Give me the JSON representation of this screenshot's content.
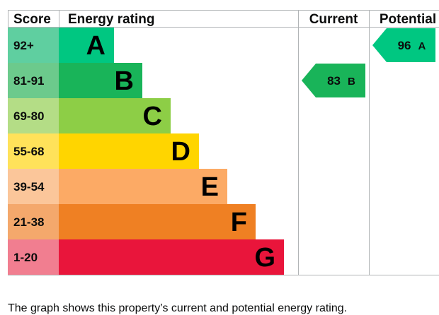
{
  "chart_data": {
    "type": "bar",
    "headers": {
      "score": "Score",
      "rating": "Energy rating",
      "current": "Current",
      "potential": "Potential"
    },
    "bands": [
      {
        "score": "92+",
        "letter": "A",
        "color": "#00c781",
        "score_color": "#5fcfa0",
        "width_rank": 1
      },
      {
        "score": "81-91",
        "letter": "B",
        "color": "#19b459",
        "score_color": "#6cca8c",
        "width_rank": 2
      },
      {
        "score": "69-80",
        "letter": "C",
        "color": "#8dce46",
        "score_color": "#b4dd86",
        "width_rank": 3
      },
      {
        "score": "55-68",
        "letter": "D",
        "color": "#ffd500",
        "score_color": "#ffe25a",
        "width_rank": 4
      },
      {
        "score": "39-54",
        "letter": "E",
        "color": "#fcaa65",
        "score_color": "#fbc69a",
        "width_rank": 5
      },
      {
        "score": "21-38",
        "letter": "F",
        "color": "#ef8023",
        "score_color": "#f4a86c",
        "width_rank": 6
      },
      {
        "score": "1-20",
        "letter": "G",
        "color": "#e9153b",
        "score_color": "#f17e90",
        "width_rank": 7
      }
    ],
    "current": {
      "value": 83,
      "letter": "B",
      "color": "#19b459"
    },
    "potential": {
      "value": 96,
      "letter": "A",
      "color": "#00c781"
    }
  },
  "caption": "The graph shows this property’s current and potential energy rating."
}
